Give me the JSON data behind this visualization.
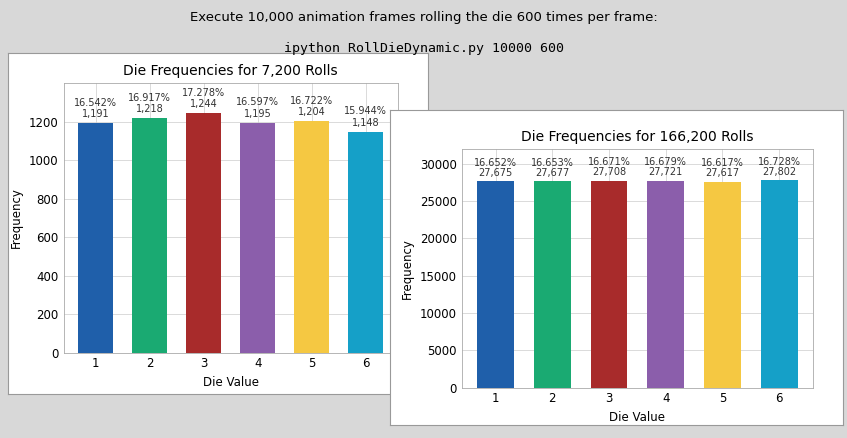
{
  "title_text_line1": "Execute 10,000 animation frames rolling the die 600 times per frame:",
  "title_text_line2": "ipython RollDieDynamic.py 10000 600",
  "chart1": {
    "title": "Die Frequencies for 7,200 Rolls",
    "xlabel": "Die Value",
    "ylabel": "Frequency",
    "die_values": [
      1,
      2,
      3,
      4,
      5,
      6
    ],
    "frequencies": [
      1191,
      1218,
      1244,
      1195,
      1204,
      1148
    ],
    "percentages": [
      "16.542%",
      "16.917%",
      "17.278%",
      "16.597%",
      "16.722%",
      "15.944%"
    ],
    "labels": [
      "1,191",
      "1,218",
      "1,244",
      "1,195",
      "1,204",
      "1,148"
    ],
    "colors": [
      "#1f5faa",
      "#1aaa72",
      "#a82b2b",
      "#8b5eab",
      "#f5c842",
      "#15a0c8"
    ],
    "ylim": [
      0,
      1400
    ],
    "yticks": [
      0,
      200,
      400,
      600,
      800,
      1000,
      1200
    ]
  },
  "chart2": {
    "title": "Die Frequencies for 166,200 Rolls",
    "xlabel": "Die Value",
    "ylabel": "Frequency",
    "die_values": [
      1,
      2,
      3,
      4,
      5,
      6
    ],
    "frequencies": [
      27675,
      27677,
      27708,
      27721,
      27617,
      27802
    ],
    "percentages": [
      "16.652%",
      "16.653%",
      "16.671%",
      "16.679%",
      "16.617%",
      "16.728%"
    ],
    "labels": [
      "27,675",
      "27,677",
      "27,708",
      "27,721",
      "27,617",
      "27,802"
    ],
    "colors": [
      "#1f5faa",
      "#1aaa72",
      "#a82b2b",
      "#8b5eab",
      "#f5c842",
      "#15a0c8"
    ],
    "ylim": [
      0,
      32000
    ],
    "yticks": [
      0,
      5000,
      10000,
      15000,
      20000,
      25000,
      30000
    ]
  },
  "bg_color": "#d8d8d8",
  "chart_bg": "#ffffff",
  "bar_annotation_fontsize": 7.0,
  "axis_label_fontsize": 8.5,
  "title_fontsize": 10,
  "main_title_fontsize": 9.5
}
